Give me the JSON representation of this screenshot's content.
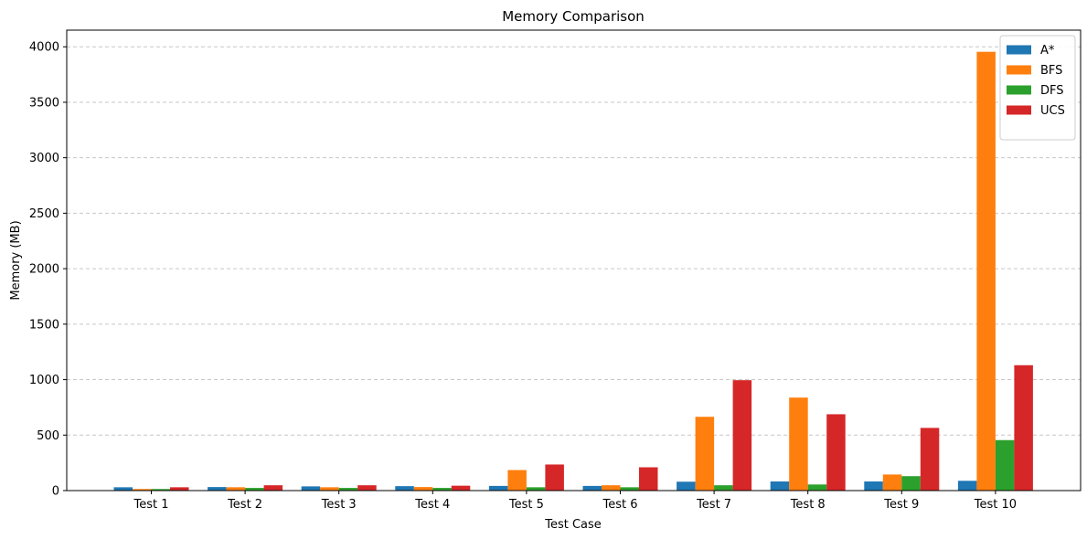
{
  "chart_data": {
    "type": "bar",
    "title": "Memory Comparison",
    "xlabel": "Test Case",
    "ylabel": "Memory (MB)",
    "ylim": [
      0,
      4150
    ],
    "yticks": [
      0,
      500,
      1000,
      1500,
      2000,
      2500,
      3000,
      3500,
      4000
    ],
    "grid": "y-dashed",
    "legend_position": "top-right",
    "categories": [
      "Test 1",
      "Test 2",
      "Test 3",
      "Test 4",
      "Test 5",
      "Test 6",
      "Test 7",
      "Test 8",
      "Test 9",
      "Test 10"
    ],
    "series": [
      {
        "name": "A*",
        "color": "#1f77b4",
        "values": [
          30,
          32,
          38,
          40,
          42,
          42,
          80,
          82,
          82,
          88
        ]
      },
      {
        "name": "BFS",
        "color": "#ff7f0e",
        "values": [
          14,
          30,
          30,
          32,
          185,
          48,
          665,
          838,
          145,
          3955
        ]
      },
      {
        "name": "DFS",
        "color": "#2ca02c",
        "values": [
          14,
          24,
          24,
          24,
          30,
          30,
          48,
          55,
          130,
          455
        ]
      },
      {
        "name": "UCS",
        "color": "#d62728",
        "values": [
          30,
          48,
          48,
          44,
          235,
          210,
          995,
          688,
          565,
          1130
        ]
      }
    ]
  }
}
